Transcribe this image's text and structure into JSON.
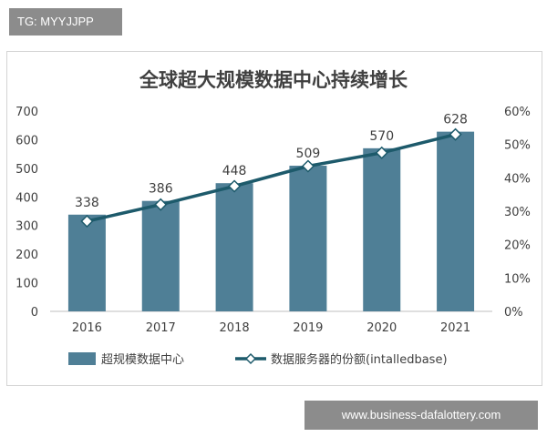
{
  "badge": {
    "text": "TG: MYYJJPP"
  },
  "footer": {
    "url": "www.business-dafalottery.com"
  },
  "chart_data": {
    "type": "bar",
    "title": "全球超大规模数据中心持续增长",
    "categories": [
      "2016",
      "2017",
      "2018",
      "2019",
      "2020",
      "2021"
    ],
    "series": [
      {
        "name": "超规模数据中心",
        "type": "bar",
        "axis": "left",
        "values": [
          338,
          386,
          448,
          509,
          570,
          628
        ],
        "data_labels": [
          "338",
          "386",
          "448",
          "509",
          "570",
          "628"
        ],
        "color": "#4f7f96"
      },
      {
        "name": "数据服务器的份额(intalledbase)",
        "type": "line",
        "axis": "right",
        "values": [
          27,
          32,
          37.5,
          43.5,
          47.5,
          53
        ],
        "color": "#1d5a6b",
        "marker": "diamond"
      }
    ],
    "y_left": {
      "min": 0,
      "max": 700,
      "ticks": [
        "0",
        "100",
        "200",
        "300",
        "400",
        "500",
        "600",
        "700"
      ]
    },
    "y_right": {
      "min": 0,
      "max": 60,
      "ticks": [
        "0%",
        "10%",
        "20%",
        "30%",
        "40%",
        "50%",
        "60%"
      ]
    },
    "grid": false,
    "legend_position": "bottom"
  }
}
